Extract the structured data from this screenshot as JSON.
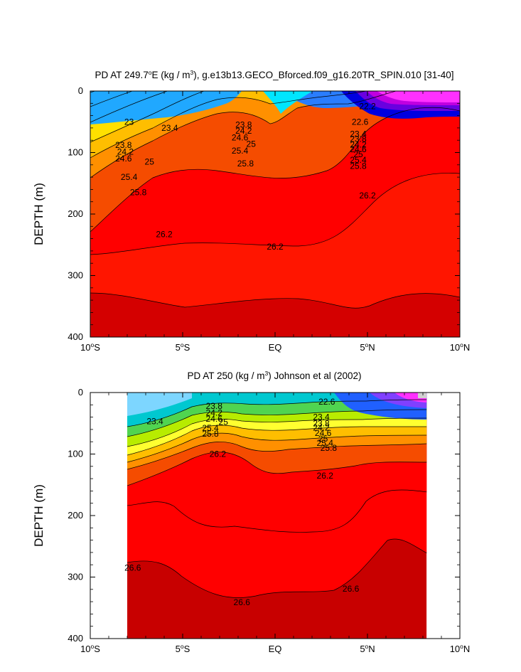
{
  "chart_data": [
    {
      "type": "contour",
      "title_main": "PD AT 249.7",
      "title_sup": "o",
      "title_rest": "E (kg / m",
      "title_sup2": "3",
      "title_tail": "), g.e13b13.GECO_Bforced.f09_g16.20TR_SPIN.010 [31-40]",
      "ylabel": "DEPTH (m)",
      "ylim": [
        0,
        400
      ],
      "xlim": [
        -10,
        10
      ],
      "y_ticks": [
        "0",
        "100",
        "200",
        "300",
        "400"
      ],
      "x_ticks": [
        {
          "value": -10,
          "num": "10",
          "deg": "o",
          "hem": "S"
        },
        {
          "value": -5,
          "num": "5",
          "deg": "o",
          "hem": "S"
        },
        {
          "value": 0,
          "num": "EQ",
          "deg": "",
          "hem": ""
        },
        {
          "value": 5,
          "num": "5",
          "deg": "o",
          "hem": "N"
        },
        {
          "value": 10,
          "num": "10",
          "deg": "o",
          "hem": "N"
        }
      ],
      "contour_labels": [
        {
          "text": "23",
          "lat": -7.9,
          "depth": 50
        },
        {
          "text": "23.4",
          "lat": -5.7,
          "depth": 60
        },
        {
          "text": "23.8",
          "lat": -8.2,
          "depth": 88
        },
        {
          "text": "24.2",
          "lat": -8.1,
          "depth": 99
        },
        {
          "text": "24.6",
          "lat": -8.2,
          "depth": 110
        },
        {
          "text": "25",
          "lat": -6.8,
          "depth": 115
        },
        {
          "text": "25.4",
          "lat": -7.9,
          "depth": 140
        },
        {
          "text": "25.8",
          "lat": -7.4,
          "depth": 165
        },
        {
          "text": "23.8",
          "lat": -1.7,
          "depth": 55
        },
        {
          "text": "24.2",
          "lat": -1.7,
          "depth": 65
        },
        {
          "text": "24.6",
          "lat": -1.9,
          "depth": 76
        },
        {
          "text": "25",
          "lat": -1.3,
          "depth": 86
        },
        {
          "text": "25.4",
          "lat": -1.9,
          "depth": 97
        },
        {
          "text": "25.8",
          "lat": -1.6,
          "depth": 118
        },
        {
          "text": "22.2",
          "lat": 5.0,
          "depth": 25
        },
        {
          "text": "22.6",
          "lat": 4.6,
          "depth": 50
        },
        {
          "text": "23.4",
          "lat": 4.5,
          "depth": 70
        },
        {
          "text": "23.8",
          "lat": 4.5,
          "depth": 78
        },
        {
          "text": "24.2",
          "lat": 4.5,
          "depth": 87
        },
        {
          "text": "24.6",
          "lat": 4.5,
          "depth": 95
        },
        {
          "text": "25",
          "lat": 4.5,
          "depth": 103
        },
        {
          "text": "25.4",
          "lat": 4.5,
          "depth": 112
        },
        {
          "text": "25.8",
          "lat": 4.5,
          "depth": 122
        },
        {
          "text": "26.2",
          "lat": -6.0,
          "depth": 233
        },
        {
          "text": "26.2",
          "lat": 0.0,
          "depth": 253
        },
        {
          "text": "26.2",
          "lat": 5.0,
          "depth": 170
        }
      ]
    },
    {
      "type": "contour",
      "title_main": "PD AT 250 (kg / m",
      "title_sup": "3",
      "title_rest": ") Johnson et al (2002)",
      "ylabel": "DEPTH (m)",
      "ylim": [
        0,
        400
      ],
      "xlim": [
        -10,
        10
      ],
      "data_extent_lat": [
        -8,
        8.2
      ],
      "y_ticks": [
        "0",
        "100",
        "200",
        "300",
        "400"
      ],
      "x_ticks": [
        {
          "value": -10,
          "num": "10",
          "deg": "o",
          "hem": "S"
        },
        {
          "value": -5,
          "num": "5",
          "deg": "o",
          "hem": "S"
        },
        {
          "value": 0,
          "num": "EQ",
          "deg": "",
          "hem": ""
        },
        {
          "value": 5,
          "num": "5",
          "deg": "o",
          "hem": "N"
        },
        {
          "value": 10,
          "num": "10",
          "deg": "o",
          "hem": "N"
        }
      ],
      "contour_labels": [
        {
          "text": "23.4",
          "lat": -6.5,
          "depth": 47
        },
        {
          "text": "23.8",
          "lat": -3.3,
          "depth": 22
        },
        {
          "text": "24.2",
          "lat": -3.3,
          "depth": 33
        },
        {
          "text": "24.6",
          "lat": -3.3,
          "depth": 43
        },
        {
          "text": "25",
          "lat": -2.8,
          "depth": 48
        },
        {
          "text": "25.4",
          "lat": -3.5,
          "depth": 58
        },
        {
          "text": "25.8",
          "lat": -3.5,
          "depth": 67
        },
        {
          "text": "22.6",
          "lat": 2.8,
          "depth": 15
        },
        {
          "text": "23.4",
          "lat": 2.5,
          "depth": 40
        },
        {
          "text": "23.8",
          "lat": 2.5,
          "depth": 50
        },
        {
          "text": "24.2",
          "lat": 2.5,
          "depth": 57
        },
        {
          "text": "24.6",
          "lat": 2.6,
          "depth": 66
        },
        {
          "text": "25",
          "lat": 2.6,
          "depth": 75
        },
        {
          "text": "25.4",
          "lat": 2.7,
          "depth": 82
        },
        {
          "text": "25.8",
          "lat": 2.9,
          "depth": 90
        },
        {
          "text": "26.2",
          "lat": -3.1,
          "depth": 100
        },
        {
          "text": "26.2",
          "lat": 2.7,
          "depth": 135
        },
        {
          "text": "26.6",
          "lat": -7.7,
          "depth": 285
        },
        {
          "text": "26.6",
          "lat": -1.8,
          "depth": 341
        },
        {
          "text": "26.6",
          "lat": 4.1,
          "depth": 319
        }
      ]
    }
  ]
}
